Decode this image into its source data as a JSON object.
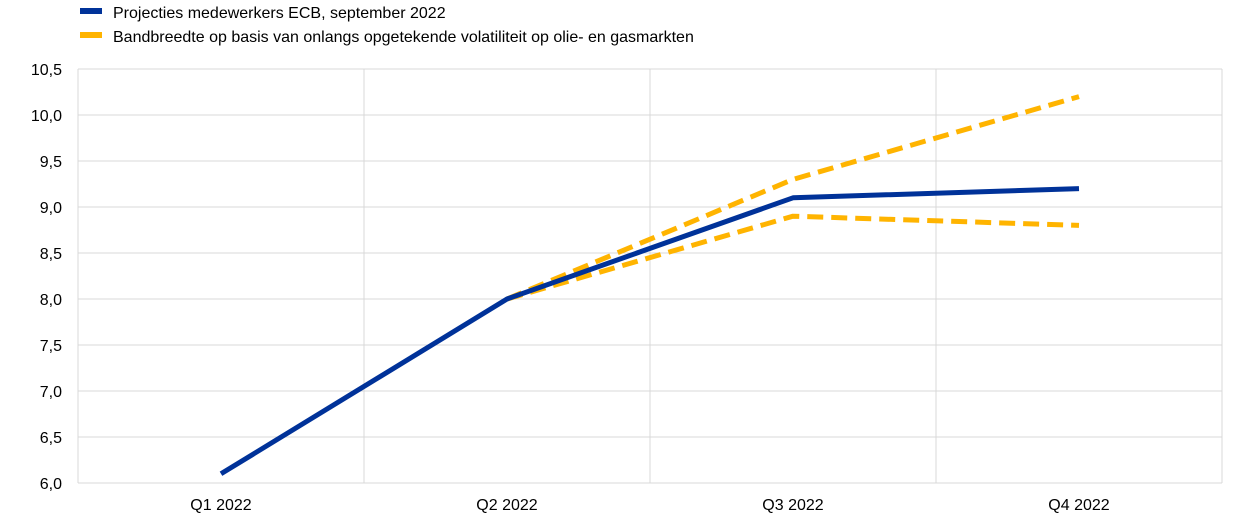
{
  "chart_data": {
    "type": "line",
    "title": "",
    "xlabel": "",
    "ylabel": "",
    "categories": [
      "Q1 2022",
      "Q2 2022",
      "Q3 2022",
      "Q4 2022"
    ],
    "ylim": [
      6.0,
      10.5
    ],
    "yticks": [
      6.0,
      6.5,
      7.0,
      7.5,
      8.0,
      8.5,
      9.0,
      9.5,
      10.0,
      10.5
    ],
    "ytick_labels": [
      "6,0",
      "6,5",
      "7,0",
      "7,5",
      "8,0",
      "8,5",
      "9,0",
      "9,5",
      "10,0",
      "10,5"
    ],
    "grid": true,
    "legend_position": "top-left",
    "series": [
      {
        "name": "Projecties medewerkers ECB, september 2022",
        "color": "#003299",
        "style": "solid",
        "values": [
          6.1,
          8.0,
          9.1,
          9.2
        ]
      },
      {
        "name": "Bandbreedte op basis van onlangs opgetekende volatiliteit op olie- en gasmarkten",
        "color": "#FFB400",
        "style": "dashed",
        "values": [
          null,
          8.0,
          9.3,
          10.2
        ]
      },
      {
        "name": "",
        "color": "#FFB400",
        "style": "dashed",
        "values": [
          null,
          8.0,
          8.9,
          8.8
        ]
      }
    ],
    "legend": [
      {
        "label": "Projecties medewerkers ECB, september 2022",
        "color": "#003299"
      },
      {
        "label": "Bandbreedte op basis van onlangs opgetekende volatiliteit op olie- en gasmarkten",
        "color": "#FFB400"
      }
    ]
  }
}
